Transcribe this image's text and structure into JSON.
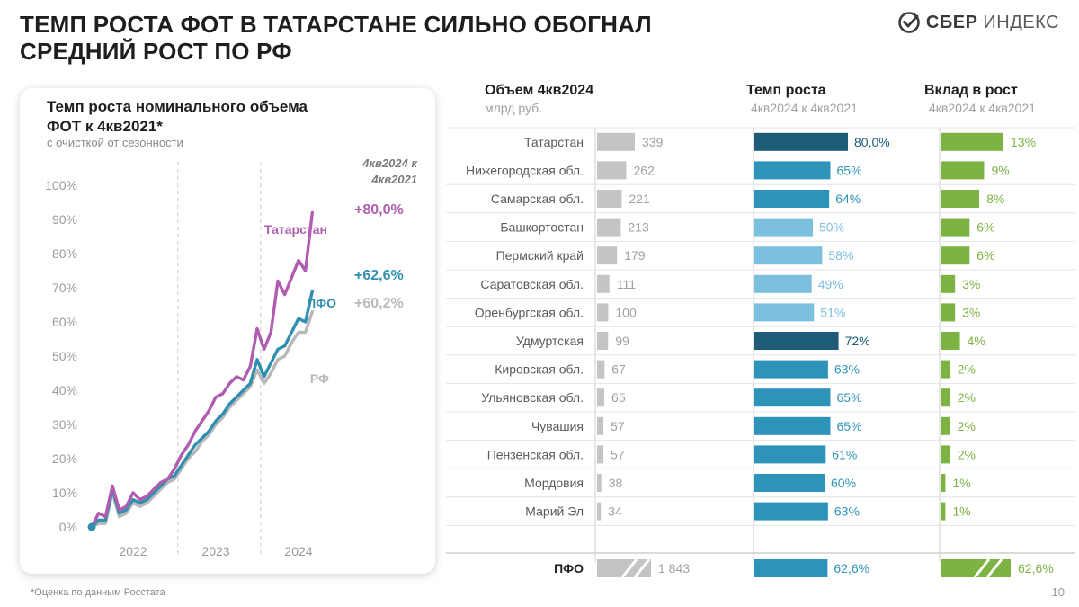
{
  "header": {
    "title_line1": "ТЕМП РОСТА ФОТ В ТАТАРСТАНЕ СИЛЬНО ОБОГНАЛ",
    "title_line2": "СРЕДНИЙ РОСТ ПО РФ",
    "logo_bold": "СБЕР",
    "logo_light": "ИНДЕКС"
  },
  "left_panel": {
    "title_line1": "Темп роста номинального объема",
    "title_line2": "ФОТ к 4кв2021*",
    "subtitle": "с очисткой от сезонности"
  },
  "chart_data": [
    {
      "type": "line",
      "title": "Темп роста номинального объема ФОТ к 4кв2021*",
      "subtitle": "с очисткой от сезонности",
      "ylim": [
        0,
        100
      ],
      "y_ticks": [
        "0%",
        "10%",
        "20%",
        "30%",
        "40%",
        "50%",
        "60%",
        "70%",
        "80%",
        "90%",
        "100%"
      ],
      "x_ticks": [
        "2022",
        "2023",
        "2024"
      ],
      "xlim": [
        0,
        36
      ],
      "annotation_header": [
        "4кв2024 к",
        "4кв2021"
      ],
      "series": [
        {
          "name": "Татарстан",
          "end_label": "+80,0%",
          "color": "#b05cb0",
          "values": [
            0,
            4,
            3,
            12,
            5,
            6,
            10,
            8,
            9,
            11,
            13,
            14,
            17,
            21,
            24,
            28,
            31,
            34,
            38,
            39,
            42,
            44,
            43,
            47,
            58,
            52,
            57,
            72,
            68,
            73,
            78,
            75,
            92
          ]
        },
        {
          "name": "ПФО",
          "end_label": "+62,6%",
          "color": "#2f8faf",
          "values": [
            0,
            2,
            2,
            11,
            4,
            5,
            8,
            7,
            8,
            10,
            12,
            14,
            15,
            18,
            21,
            24,
            26,
            28,
            31,
            33,
            36,
            38,
            40,
            42,
            49,
            44,
            48,
            52,
            53,
            57,
            61,
            60,
            69
          ]
        },
        {
          "name": "РФ",
          "end_label": "+60,2%",
          "color": "#b8b8b8",
          "values": [
            0,
            1,
            1,
            10,
            3,
            4,
            7,
            6,
            7,
            9,
            11,
            13,
            14,
            17,
            20,
            22,
            25,
            27,
            30,
            32,
            35,
            37,
            39,
            41,
            46,
            42,
            45,
            49,
            50,
            54,
            57,
            57,
            63
          ]
        }
      ]
    },
    {
      "type": "bar",
      "columns": [
        {
          "title": "Объем 4кв2024",
          "subtitle": "млрд руб."
        },
        {
          "title": "Темп роста",
          "subtitle": "4кв2024 к 4кв2021"
        },
        {
          "title": "Вклад в рост",
          "subtitle": "4кв2024 к 4кв2021"
        }
      ],
      "rows": [
        {
          "region": "Татарстан",
          "volume": 339,
          "growth": 80.0,
          "growth_label": "80,0%",
          "contrib": 13,
          "contrib_label": "13%",
          "shade": "dark"
        },
        {
          "region": "Нижегородская обл.",
          "volume": 262,
          "growth": 65,
          "growth_label": "65%",
          "contrib": 9,
          "contrib_label": "9%",
          "shade": "mid"
        },
        {
          "region": "Самарская обл.",
          "volume": 221,
          "growth": 64,
          "growth_label": "64%",
          "contrib": 8,
          "contrib_label": "8%",
          "shade": "mid"
        },
        {
          "region": "Башкортостан",
          "volume": 213,
          "growth": 50,
          "growth_label": "50%",
          "contrib": 6,
          "contrib_label": "6%",
          "shade": "light"
        },
        {
          "region": "Пермский край",
          "volume": 179,
          "growth": 58,
          "growth_label": "58%",
          "contrib": 6,
          "contrib_label": "6%",
          "shade": "light"
        },
        {
          "region": "Саратовская обл.",
          "volume": 111,
          "growth": 49,
          "growth_label": "49%",
          "contrib": 3,
          "contrib_label": "3%",
          "shade": "light"
        },
        {
          "region": "Оренбургская обл.",
          "volume": 100,
          "growth": 51,
          "growth_label": "51%",
          "contrib": 3,
          "contrib_label": "3%",
          "shade": "light"
        },
        {
          "region": "Удмуртская",
          "volume": 99,
          "growth": 72,
          "growth_label": "72%",
          "contrib": 4,
          "contrib_label": "4%",
          "shade": "dark"
        },
        {
          "region": "Кировская обл.",
          "volume": 67,
          "growth": 63,
          "growth_label": "63%",
          "contrib": 2,
          "contrib_label": "2%",
          "shade": "mid"
        },
        {
          "region": "Ульяновская обл.",
          "volume": 65,
          "growth": 65,
          "growth_label": "65%",
          "contrib": 2,
          "contrib_label": "2%",
          "shade": "mid"
        },
        {
          "region": "Чувашия",
          "volume": 57,
          "growth": 65,
          "growth_label": "65%",
          "contrib": 2,
          "contrib_label": "2%",
          "shade": "mid"
        },
        {
          "region": "Пензенская обл.",
          "volume": 57,
          "growth": 61,
          "growth_label": "61%",
          "contrib": 2,
          "contrib_label": "2%",
          "shade": "mid"
        },
        {
          "region": "Мордовия",
          "volume": 38,
          "growth": 60,
          "growth_label": "60%",
          "contrib": 1,
          "contrib_label": "1%",
          "shade": "mid"
        },
        {
          "region": "Марий Эл",
          "volume": 34,
          "growth": 63,
          "growth_label": "63%",
          "contrib": 1,
          "contrib_label": "1%",
          "shade": "mid"
        }
      ],
      "total": {
        "region": "ПФО",
        "volume_label": "1 843",
        "growth": 62.6,
        "growth_label": "62,6%",
        "contrib": 62.6,
        "contrib_label": "62,6%"
      }
    }
  ],
  "colors": {
    "dark": "#1d5b78",
    "mid": "#2e93b8",
    "light": "#7cc0dd",
    "green": "#7cb342",
    "gray_bar": "#c4c4c4"
  },
  "footer": {
    "footnote": "*Оценка по данным Росстата",
    "page_number": "10"
  }
}
